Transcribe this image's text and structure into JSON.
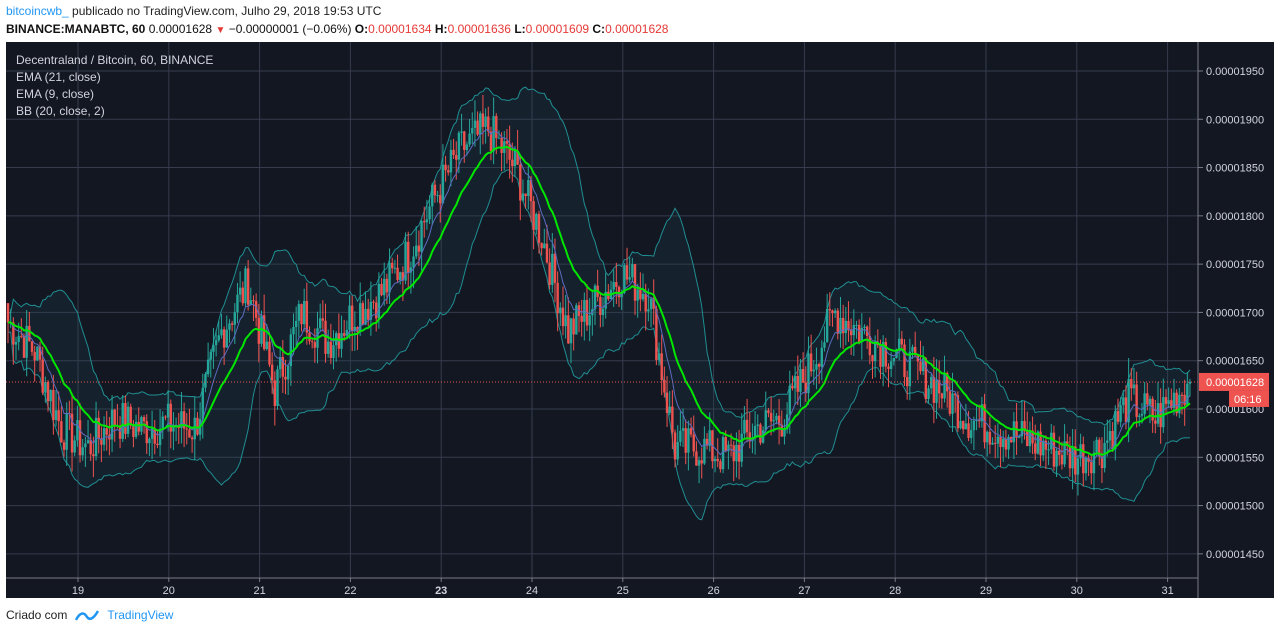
{
  "header": {
    "author": "bitcoincwb_",
    "published": "publicado no TradingView.com, Julho 29, 2018 19:53 UTC",
    "symbol": "BINANCE:MANABTC, 60",
    "last": "0.00001628",
    "change": "−0.00000001 (−0.06%)",
    "o_label": "O:",
    "o": "0.00001634",
    "h_label": "H:",
    "h": "0.00001636",
    "l_label": "L:",
    "l": "0.00001609",
    "c_label": "C:",
    "c": "0.00001628"
  },
  "legend": {
    "title": "Decentraland / Bitcoin, 60, BINANCE",
    "ema21": "EMA (21, close)",
    "ema9": "EMA (9, close)",
    "bb": "BB (20, close, 2)"
  },
  "price_tag": {
    "price": "0.00001628",
    "countdown": "06:16"
  },
  "footer": {
    "created": "Criado com",
    "brand": "TradingView"
  },
  "colors": {
    "background": "#131722",
    "grid": "#363c4e",
    "axis_text": "#d1d4dc",
    "up": "#26a69a",
    "down": "#ef5350",
    "ema21": "#00e600",
    "ema9": "#5c6bc0",
    "bb": "#1f8e92",
    "tag": "#ef5350",
    "brand": "#2196f3"
  },
  "chart_data": {
    "type": "candlestick",
    "x_ticks": [
      "19",
      "20",
      "21",
      "22",
      "23",
      "24",
      "25",
      "26",
      "27",
      "28",
      "29",
      "30",
      "31"
    ],
    "bold_x_tick": "23",
    "y_ticks": [
      "0.00001950",
      "0.00001900",
      "0.00001850",
      "0.00001800",
      "0.00001750",
      "0.00001700",
      "0.00001650",
      "0.00001600",
      "0.00001550",
      "0.00001500",
      "0.00001450"
    ],
    "ylim": [
      1.425e-05,
      1.98e-05
    ],
    "anchors_close": [
      [
        0,
        1.69e-05
      ],
      [
        10,
        1.66e-05
      ],
      [
        20,
        1.58e-05
      ],
      [
        30,
        1.56e-05
      ],
      [
        40,
        1.59e-05
      ],
      [
        50,
        1.58e-05
      ],
      [
        60,
        1.585e-05
      ],
      [
        70,
        1.58e-05
      ],
      [
        80,
        1.68e-05
      ],
      [
        90,
        1.73e-05
      ],
      [
        100,
        1.62e-05
      ],
      [
        110,
        1.7e-05
      ],
      [
        120,
        1.67e-05
      ],
      [
        130,
        1.7e-05
      ],
      [
        140,
        1.72e-05
      ],
      [
        150,
        1.76e-05
      ],
      [
        160,
        1.82e-05
      ],
      [
        170,
        1.87e-05
      ],
      [
        180,
        1.89e-05
      ],
      [
        190,
        1.85e-05
      ],
      [
        200,
        1.78e-05
      ],
      [
        210,
        1.68e-05
      ],
      [
        220,
        1.71e-05
      ],
      [
        230,
        1.74e-05
      ],
      [
        240,
        1.72e-05
      ],
      [
        250,
        1.56e-05
      ],
      [
        260,
        1.56e-05
      ],
      [
        270,
        1.55e-05
      ],
      [
        280,
        1.58e-05
      ],
      [
        290,
        1.59e-05
      ],
      [
        300,
        1.64e-05
      ],
      [
        310,
        1.7e-05
      ],
      [
        320,
        1.68e-05
      ],
      [
        330,
        1.66e-05
      ],
      [
        340,
        1.64e-05
      ],
      [
        350,
        1.62e-05
      ],
      [
        360,
        1.59e-05
      ],
      [
        370,
        1.58e-05
      ],
      [
        380,
        1.57e-05
      ],
      [
        390,
        1.56e-05
      ],
      [
        400,
        1.55e-05
      ],
      [
        410,
        1.56e-05
      ],
      [
        420,
        1.61e-05
      ],
      [
        430,
        1.59e-05
      ],
      [
        440,
        1.62e-05
      ],
      [
        443,
        1.628e-05
      ]
    ],
    "last_close": 1.628e-05
  }
}
